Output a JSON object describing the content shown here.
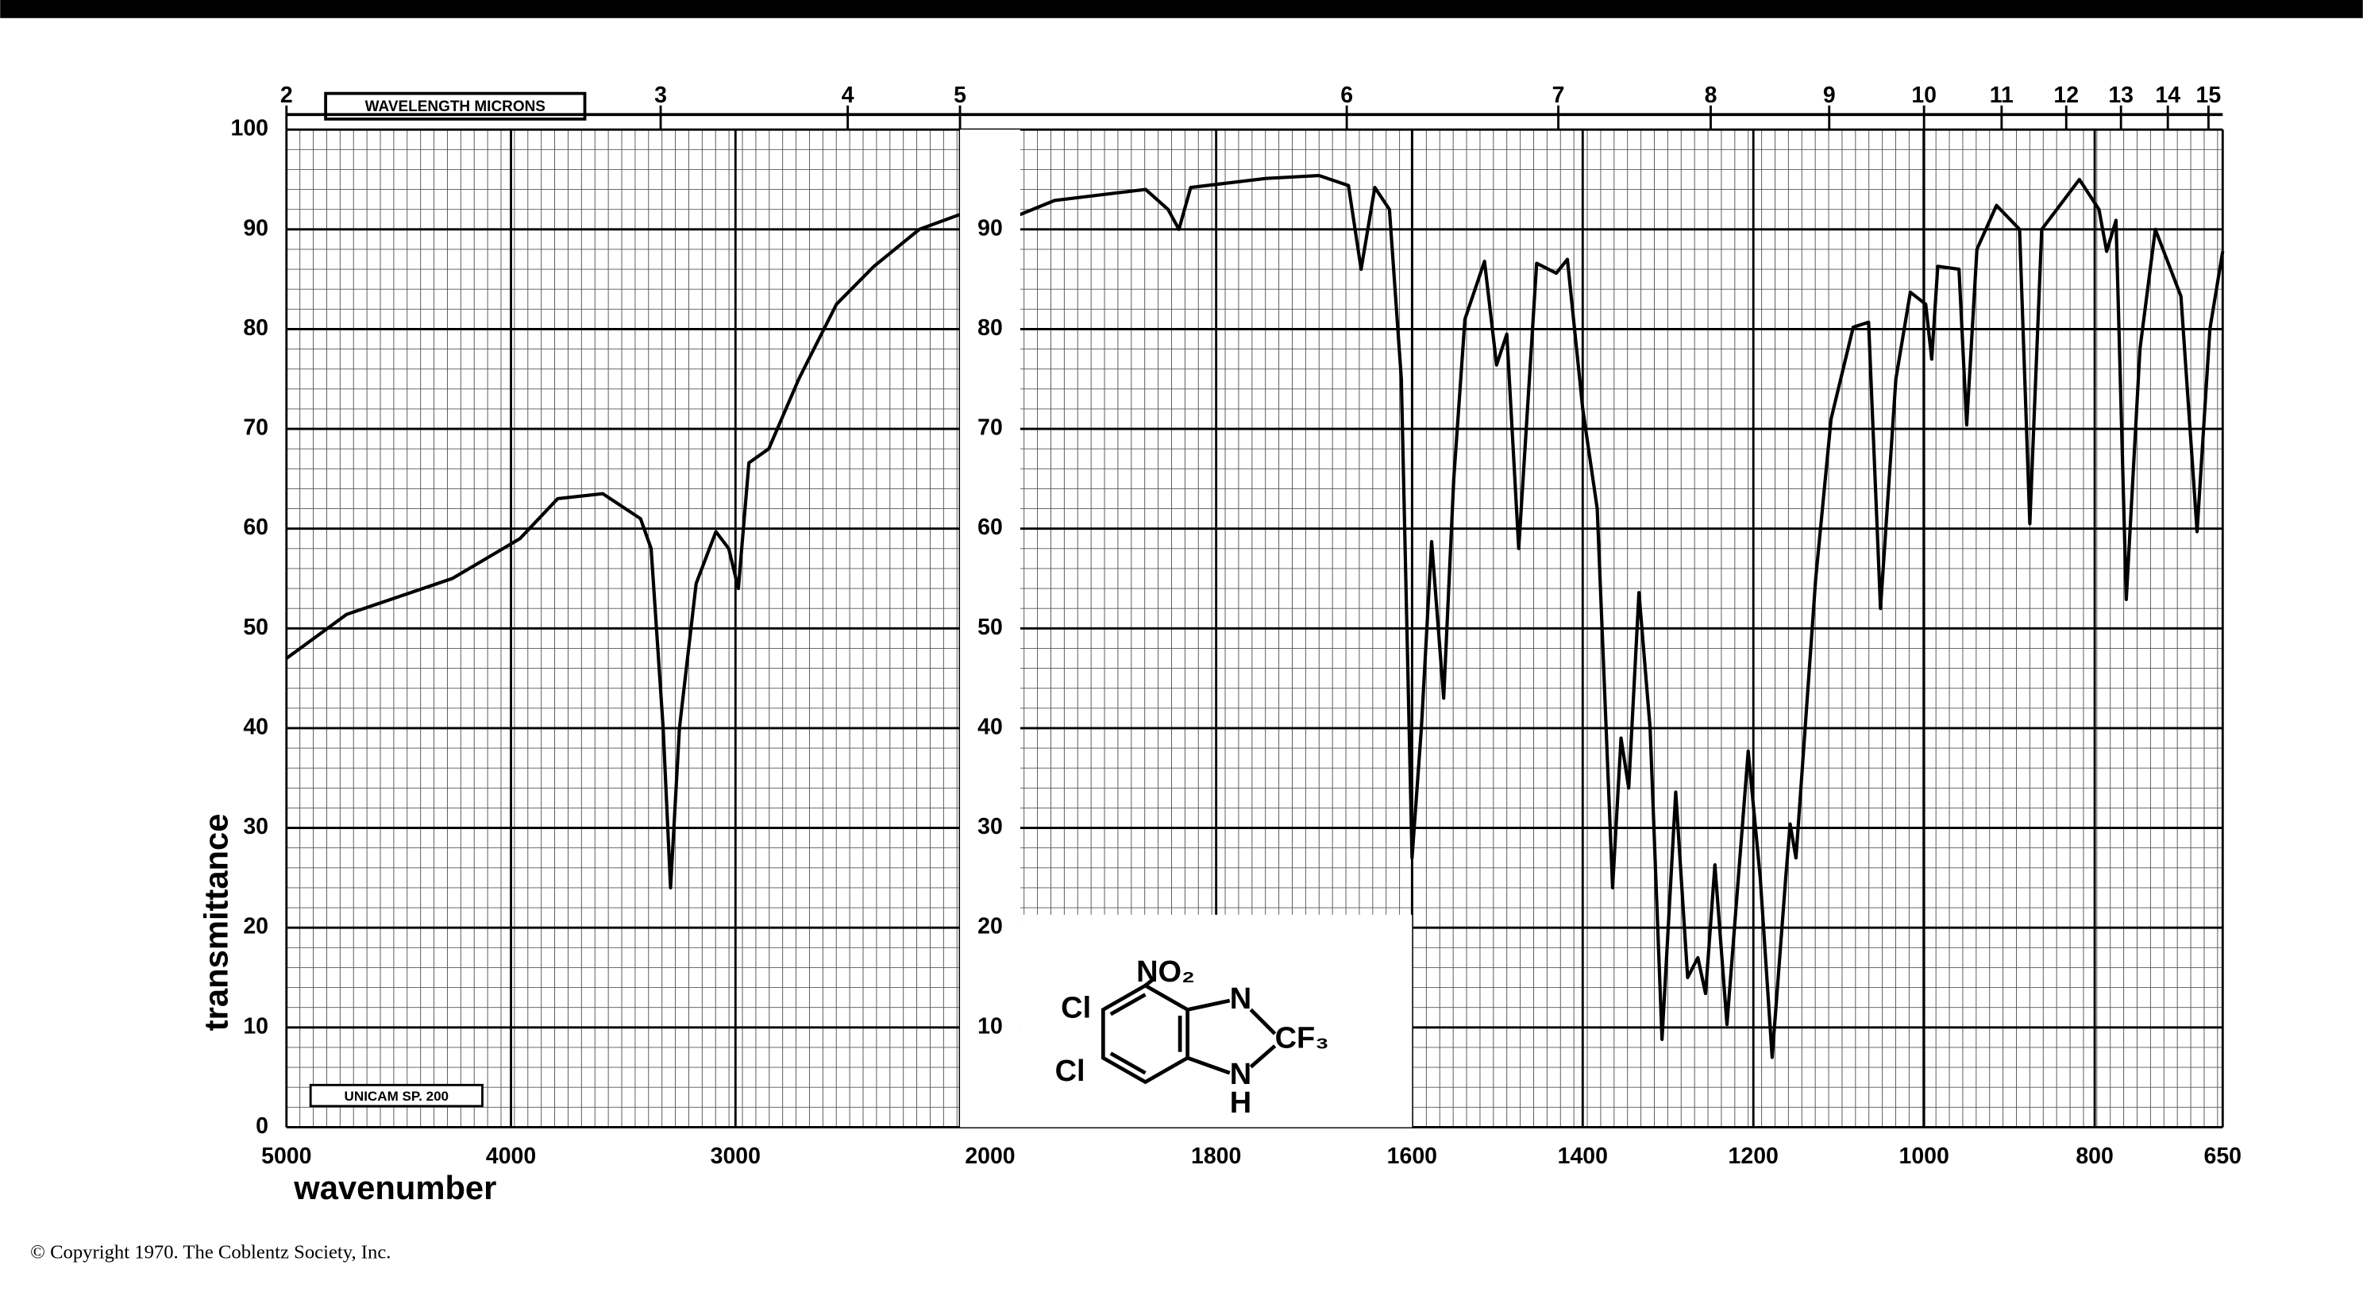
{
  "chart_data": {
    "type": "line",
    "x_label": "wavenumber",
    "y_label": "transmittance",
    "top_axis_label": "WAVELENGTH MICRONS",
    "instrument": "UNICAM SP. 200",
    "xlim": [
      5000,
      650
    ],
    "x_breaks": [
      2000,
      1600
    ],
    "xticks": [
      5000,
      4000,
      3000,
      2000,
      1800,
      1600,
      1400,
      1200,
      1000,
      800,
      650
    ],
    "x2ticks": [
      2,
      3,
      4,
      5,
      6,
      7,
      8,
      9,
      10,
      11,
      12,
      13,
      14,
      15
    ],
    "ylim": [
      0,
      100
    ],
    "yticks": [
      0,
      10,
      20,
      30,
      40,
      50,
      60,
      70,
      80,
      90,
      100
    ],
    "grid": true,
    "color": "#000000",
    "x": [
      5000,
      4732,
      4262,
      3960,
      3792,
      3591,
      3423,
      3376,
      3322,
      3289,
      3250,
      3175,
      3087,
      3030,
      2987,
      2940,
      2852,
      2718,
      2550,
      2383,
      2181,
      2000,
      2000,
      1965,
      1872,
      1849,
      1838,
      1826,
      1749,
      1695,
      1665,
      1652,
      1638,
      1623,
      1611,
      1600,
      1589,
      1577,
      1563,
      1551,
      1538,
      1515,
      1501,
      1489,
      1475,
      1454,
      1431,
      1418,
      1400,
      1383,
      1365,
      1355,
      1346,
      1334,
      1321,
      1307,
      1291,
      1277,
      1265,
      1256,
      1245,
      1231,
      1206,
      1192,
      1178,
      1162,
      1157,
      1150,
      1127,
      1109,
      1083,
      1065,
      1051,
      1033,
      1016,
      998,
      991,
      984,
      959,
      950,
      938,
      915,
      888,
      876,
      862,
      818,
      795,
      786,
      775,
      763,
      747,
      729,
      699,
      680,
      665,
      650
    ],
    "values": [
      47,
      51.4,
      55,
      59,
      63,
      63.5,
      61,
      58,
      40,
      24,
      40,
      54.5,
      59.7,
      58,
      54,
      66.6,
      68,
      75,
      82.5,
      86.3,
      90,
      91.5,
      91.5,
      92.9,
      94,
      92,
      90,
      94.2,
      95.1,
      95.4,
      94.4,
      86,
      94.2,
      92,
      75,
      27,
      40,
      58.7,
      43,
      65,
      81,
      86.8,
      76.4,
      79.5,
      58,
      86.6,
      85.6,
      87,
      72,
      62,
      24,
      39,
      34,
      53.6,
      40,
      8.8,
      33.6,
      15,
      17,
      13.4,
      26.3,
      10.3,
      37.7,
      25,
      7,
      25,
      30.4,
      27,
      55,
      71,
      80.2,
      80.7,
      52,
      75,
      83.7,
      82.5,
      77,
      86.3,
      86,
      70.4,
      88,
      92.4,
      90,
      60.5,
      90,
      95,
      92,
      87.8,
      90.9,
      52.9,
      78,
      90,
      83.3,
      59.7,
      80,
      87.8
    ]
  },
  "structure": {
    "labels": [
      "NO₂",
      "Cl",
      "Cl",
      "N",
      "N",
      "H",
      "CF₃"
    ]
  },
  "copyright": "© Copyright 1970.  The Coblentz Society, Inc."
}
